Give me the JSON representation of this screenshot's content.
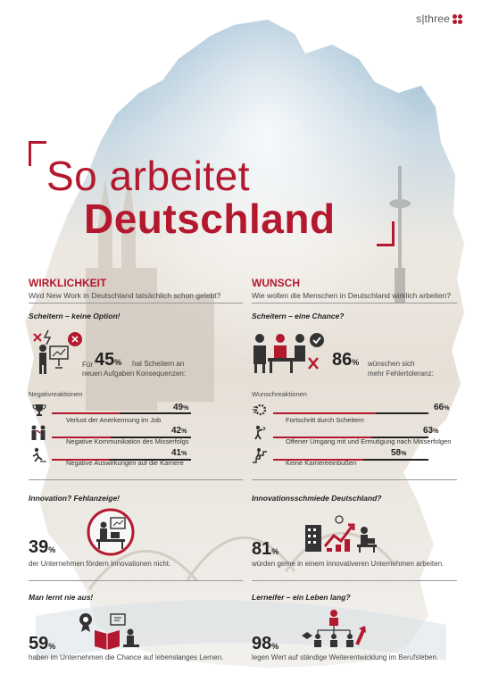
{
  "brand": {
    "logo_text": "s|three",
    "accent_color": "#b3182e"
  },
  "title": {
    "line1": "So arbeitet",
    "line2": "Deutschland"
  },
  "left": {
    "heading": "WIRKLICHKEIT",
    "subheading": "Wird New Work in Deutschland tatsächlich schon gelebt?",
    "section1": {
      "title": "Scheitern – keine Option!",
      "stat_prefix": "Für",
      "stat_value": "45",
      "stat_unit": "%",
      "stat_text_1": "hat Scheitern an",
      "stat_text_2": "neuen Aufgaben Konsequenzen:",
      "list_title": "Negativreaktionen",
      "bars": [
        {
          "label": "Verlust der Anerkennung im Job",
          "value": "49",
          "unit": "%",
          "fraction": 0.49
        },
        {
          "label": "Negative Kommunikation des Misserfolgs",
          "value": "42",
          "unit": "%",
          "fraction": 0.42
        },
        {
          "label": "Negative Auswirkungen auf die Karriere",
          "value": "41",
          "unit": "%",
          "fraction": 0.41
        }
      ]
    },
    "section2": {
      "title": "Innovation? Fehlanzeige!",
      "stat_value": "39",
      "stat_unit": "%",
      "stat_text": "der Unternehmen fördern Innovationen nicht."
    },
    "section3": {
      "title": "Man lernt nie aus!",
      "stat_value": "59",
      "stat_unit": "%",
      "stat_text": "haben im Unternehmen die Chance auf lebenslanges Lernen."
    }
  },
  "right": {
    "heading": "WUNSCH",
    "subheading": "Wie wollen die Menschen in Deutschland wirklich arbeiten?",
    "section1": {
      "title": "Scheitern – eine Chance?",
      "stat_value": "86",
      "stat_unit": "%",
      "stat_text_1": "wünschen sich",
      "stat_text_2": "mehr Fehlertoleranz:",
      "list_title": "Wunschreaktionen",
      "bars": [
        {
          "label": "Fortschritt durch Scheitern",
          "value": "66",
          "unit": "%",
          "fraction": 0.66
        },
        {
          "label": "Offener Umgang mit und Ermutigung nach Misserfolgen",
          "value": "63",
          "unit": "%",
          "fraction": 0.63
        },
        {
          "label": "Keine Karriereeinbußen",
          "value": "58",
          "unit": "%",
          "fraction": 0.58
        }
      ]
    },
    "section2": {
      "title": "Innovationsschmiede Deutschland?",
      "stat_value": "81",
      "stat_unit": "%",
      "stat_text": "würden gerne in einem innovativeren Unternehmen arbeiten."
    },
    "section3": {
      "title": "Lerneifer – ein Leben lang?",
      "stat_value": "98",
      "stat_unit": "%",
      "stat_text": "legen Wert auf ständige Weiterentwicklung im Berufsleben."
    }
  }
}
